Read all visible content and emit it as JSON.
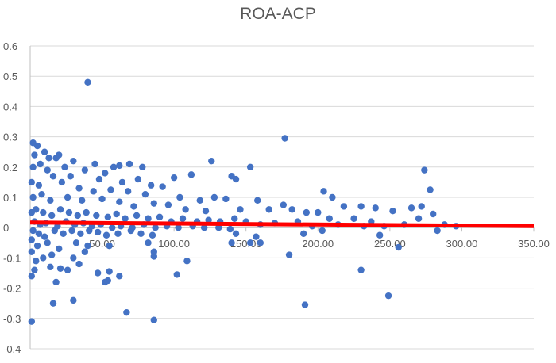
{
  "chart_data": {
    "type": "scatter",
    "title": "ROA-ACP",
    "xlabel": "",
    "ylabel": "",
    "xlim": [
      0,
      350
    ],
    "ylim": [
      -0.4,
      0.6
    ],
    "x_ticks": [
      "50.00",
      "100.00",
      "150.00",
      "200.00",
      "250.00",
      "300.00",
      "350.00"
    ],
    "y_ticks": [
      "0.6",
      "0.5",
      "0.4",
      "0.3",
      "0.2",
      "0.1",
      "0",
      "-0.1",
      "-0.2",
      "-0.3",
      "-0.4"
    ],
    "grid": "horizontal",
    "legend": "none",
    "point_color": "#4472C4",
    "trendline_color": "#FF0000",
    "trendline": {
      "x": [
        0,
        350
      ],
      "y": [
        0.017,
        0.005
      ]
    },
    "points": [
      [
        40,
        0.48
      ],
      [
        177,
        0.295
      ],
      [
        2,
        0.28
      ],
      [
        5,
        0.27
      ],
      [
        10,
        0.25
      ],
      [
        3,
        0.24
      ],
      [
        13,
        0.23
      ],
      [
        20,
        0.24
      ],
      [
        18,
        0.23
      ],
      [
        30,
        0.22
      ],
      [
        45,
        0.21
      ],
      [
        62,
        0.205
      ],
      [
        69,
        0.21
      ],
      [
        78,
        0.2
      ],
      [
        126,
        0.22
      ],
      [
        153,
        0.2
      ],
      [
        274,
        0.19
      ],
      [
        2,
        0.2
      ],
      [
        7,
        0.21
      ],
      [
        12,
        0.19
      ],
      [
        24,
        0.2
      ],
      [
        38,
        0.19
      ],
      [
        52,
        0.18
      ],
      [
        58,
        0.2
      ],
      [
        112,
        0.175
      ],
      [
        140,
        0.17
      ],
      [
        143,
        0.16
      ],
      [
        100,
        0.165
      ],
      [
        75,
        0.16
      ],
      [
        84,
        0.14
      ],
      [
        92,
        0.135
      ],
      [
        64,
        0.15
      ],
      [
        48,
        0.16
      ],
      [
        28,
        0.17
      ],
      [
        16,
        0.17
      ],
      [
        1,
        0.15
      ],
      [
        6,
        0.14
      ],
      [
        22,
        0.15
      ],
      [
        34,
        0.13
      ],
      [
        44,
        0.12
      ],
      [
        56,
        0.125
      ],
      [
        68,
        0.12
      ],
      [
        80,
        0.11
      ],
      [
        104,
        0.1
      ],
      [
        118,
        0.09
      ],
      [
        128,
        0.1
      ],
      [
        136,
        0.095
      ],
      [
        158,
        0.09
      ],
      [
        176,
        0.075
      ],
      [
        204,
        0.12
      ],
      [
        210,
        0.1
      ],
      [
        278,
        0.125
      ],
      [
        218,
        0.07
      ],
      [
        230,
        0.07
      ],
      [
        240,
        0.065
      ],
      [
        265,
        0.065
      ],
      [
        272,
        0.07
      ],
      [
        2,
        0.1
      ],
      [
        8,
        0.11
      ],
      [
        14,
        0.09
      ],
      [
        26,
        0.1
      ],
      [
        36,
        0.09
      ],
      [
        50,
        0.095
      ],
      [
        62,
        0.085
      ],
      [
        72,
        0.07
      ],
      [
        86,
        0.08
      ],
      [
        96,
        0.075
      ],
      [
        108,
        0.06
      ],
      [
        122,
        0.055
      ],
      [
        146,
        0.06
      ],
      [
        166,
        0.06
      ],
      [
        182,
        0.06
      ],
      [
        192,
        0.05
      ],
      [
        200,
        0.05
      ],
      [
        208,
        0.03
      ],
      [
        225,
        0.03
      ],
      [
        237,
        0.02
      ],
      [
        252,
        0.055
      ],
      [
        270,
        0.03
      ],
      [
        280,
        0.045
      ],
      [
        288,
        0.01
      ],
      [
        296,
        0.005
      ],
      [
        1,
        0.05
      ],
      [
        4,
        0.06
      ],
      [
        9,
        0.05
      ],
      [
        15,
        0.04
      ],
      [
        21,
        0.06
      ],
      [
        27,
        0.05
      ],
      [
        33,
        0.04
      ],
      [
        39,
        0.05
      ],
      [
        46,
        0.04
      ],
      [
        54,
        0.035
      ],
      [
        60,
        0.045
      ],
      [
        66,
        0.03
      ],
      [
        74,
        0.04
      ],
      [
        82,
        0.03
      ],
      [
        90,
        0.035
      ],
      [
        98,
        0.02
      ],
      [
        106,
        0.03
      ],
      [
        116,
        0.02
      ],
      [
        124,
        0.025
      ],
      [
        132,
        0.02
      ],
      [
        142,
        0.03
      ],
      [
        150,
        0.02
      ],
      [
        160,
        0.01
      ],
      [
        170,
        0.015
      ],
      [
        186,
        0.02
      ],
      [
        196,
        0.005
      ],
      [
        214,
        0.01
      ],
      [
        232,
        0.005
      ],
      [
        246,
        0.005
      ],
      [
        260,
        0.01
      ],
      [
        3,
        0.02
      ],
      [
        7,
        0.01
      ],
      [
        11,
        0.015
      ],
      [
        19,
        0.005
      ],
      [
        25,
        0.02
      ],
      [
        31,
        0.01
      ],
      [
        37,
        0.015
      ],
      [
        43,
        0.005
      ],
      [
        49,
        0.01
      ],
      [
        57,
        0.0
      ],
      [
        63,
        0.005
      ],
      [
        71,
        0.0
      ],
      [
        79,
        0.01
      ],
      [
        87,
        0.0
      ],
      [
        95,
        0.005
      ],
      [
        103,
        0.0
      ],
      [
        113,
        0.005
      ],
      [
        121,
        0.0
      ],
      [
        131,
        0.0
      ],
      [
        139,
        -0.005
      ],
      [
        2,
        -0.01
      ],
      [
        6,
        -0.02
      ],
      [
        10,
        -0.03
      ],
      [
        17,
        -0.01
      ],
      [
        23,
        -0.02
      ],
      [
        29,
        -0.01
      ],
      [
        35,
        -0.02
      ],
      [
        41,
        -0.01
      ],
      [
        47,
        -0.015
      ],
      [
        53,
        -0.025
      ],
      [
        61,
        -0.02
      ],
      [
        70,
        -0.01
      ],
      [
        77,
        -0.02
      ],
      [
        85,
        -0.025
      ],
      [
        143,
        -0.02
      ],
      [
        157,
        -0.03
      ],
      [
        190,
        -0.02
      ],
      [
        203,
        -0.01
      ],
      [
        243,
        -0.025
      ],
      [
        283,
        -0.01
      ],
      [
        1,
        -0.04
      ],
      [
        5,
        -0.06
      ],
      [
        12,
        -0.05
      ],
      [
        20,
        -0.07
      ],
      [
        32,
        -0.05
      ],
      [
        40,
        -0.06
      ],
      [
        55,
        -0.06
      ],
      [
        82,
        -0.05
      ],
      [
        86,
        -0.08
      ],
      [
        140,
        -0.05
      ],
      [
        153,
        -0.05
      ],
      [
        160,
        -0.05
      ],
      [
        180,
        -0.09
      ],
      [
        256,
        -0.065
      ],
      [
        1,
        -0.08
      ],
      [
        4,
        -0.11
      ],
      [
        9,
        -0.1
      ],
      [
        15,
        -0.09
      ],
      [
        30,
        -0.1
      ],
      [
        38,
        -0.08
      ],
      [
        3,
        -0.14
      ],
      [
        14,
        -0.13
      ],
      [
        18,
        -0.18
      ],
      [
        26,
        -0.14
      ],
      [
        47,
        -0.15
      ],
      [
        52,
        -0.18
      ],
      [
        55,
        -0.145
      ],
      [
        54,
        -0.175
      ],
      [
        62,
        -0.16
      ],
      [
        86,
        -0.095
      ],
      [
        109,
        -0.11
      ],
      [
        102,
        -0.155
      ],
      [
        230,
        -0.14
      ],
      [
        1,
        -0.16
      ],
      [
        16,
        -0.25
      ],
      [
        30,
        -0.24
      ],
      [
        191,
        -0.255
      ],
      [
        249,
        -0.225
      ],
      [
        67,
        -0.28
      ],
      [
        86,
        -0.305
      ],
      [
        1,
        -0.31
      ],
      [
        21,
        -0.135
      ],
      [
        34,
        -0.12
      ]
    ]
  }
}
